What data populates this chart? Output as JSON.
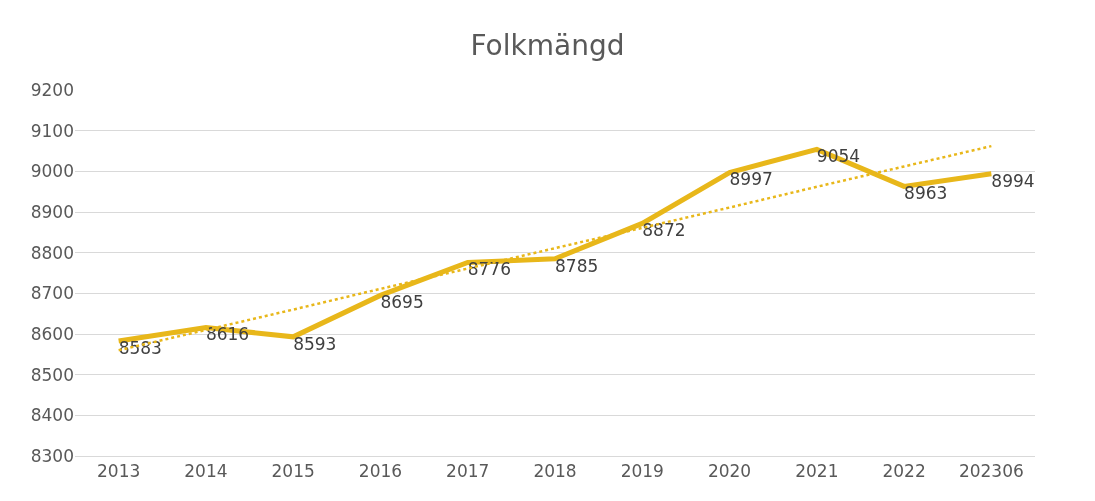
{
  "chart_data": {
    "type": "line",
    "title": "Folkmängd",
    "categories": [
      "2013",
      "2014",
      "2015",
      "2016",
      "2017",
      "2018",
      "2019",
      "2020",
      "2021",
      "2022",
      "202306"
    ],
    "series": [
      {
        "color": "#e8b71a",
        "values": [
          8583,
          8616,
          8593,
          8695,
          8776,
          8785,
          8872,
          8997,
          9054,
          8963,
          8994
        ],
        "value_labels": [
          "8583",
          "8616",
          "8593",
          "8695",
          "8776",
          "8785",
          "8872",
          "8997",
          "9054",
          "8963",
          "8994"
        ],
        "line_style": "solid"
      },
      {
        "type": "line",
        "color": "#e8b71a",
        "values": [
          8560,
          8610,
          8660,
          8711,
          8761,
          8811,
          8861,
          8911,
          8962,
          9012,
          9062
        ],
        "line_style": "dotted"
      }
    ],
    "ylim": [
      8300,
      9200
    ],
    "yticks": [
      8300,
      8400,
      8500,
      8600,
      8700,
      8800,
      8900,
      9000,
      9100,
      9200
    ],
    "grid": "y",
    "marker": "none"
  }
}
